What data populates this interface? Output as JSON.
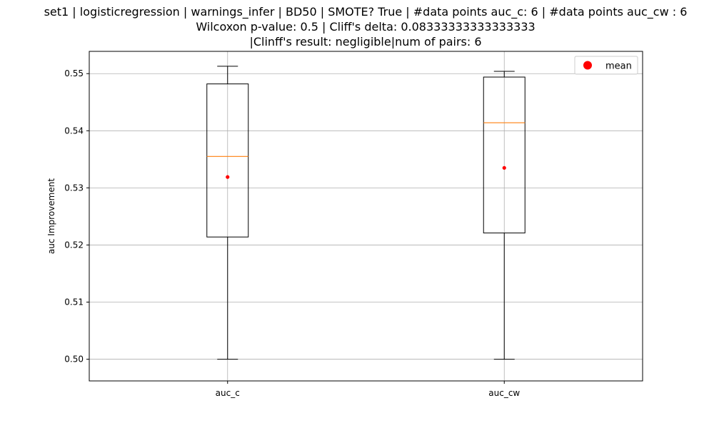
{
  "chart_data": {
    "type": "box",
    "title_lines": [
      "set1 | logisticregression | warnings_infer | BD50 | SMOTE? True | #data points auc_c: 6 | #data points auc_cw : 6",
      "Wilcoxon p-value: 0.5 | Cliff's delta: 0.08333333333333333",
      "|Clinff's result: negligible|num of pairs: 6"
    ],
    "ylabel": "auc Improvement",
    "xlabel": "",
    "ylim": [
      0.4962,
      0.5539
    ],
    "yticks": [
      0.5,
      0.51,
      0.52,
      0.53,
      0.54,
      0.55
    ],
    "ytick_labels": [
      "0.50",
      "0.51",
      "0.52",
      "0.53",
      "0.54",
      "0.55"
    ],
    "grid": true,
    "legend": {
      "placement": "top-right",
      "entries": [
        {
          "label": "mean",
          "marker": "circle",
          "color": "#ff0000"
        }
      ]
    },
    "categories": [
      "auc_c",
      "auc_cw"
    ],
    "boxes": [
      {
        "name": "auc_c",
        "whisker_low": 0.5,
        "q1": 0.5214,
        "median": 0.5355,
        "q3": 0.5482,
        "whisker_high": 0.5513,
        "mean": 0.5319
      },
      {
        "name": "auc_cw",
        "whisker_low": 0.5,
        "q1": 0.5221,
        "median": 0.5414,
        "q3": 0.5494,
        "whisker_high": 0.5504,
        "mean": 0.5335
      }
    ],
    "colors": {
      "box": "#000000",
      "median": "#ff7f0e",
      "mean": "#ff0000",
      "grid": "#b0b0b0"
    }
  }
}
